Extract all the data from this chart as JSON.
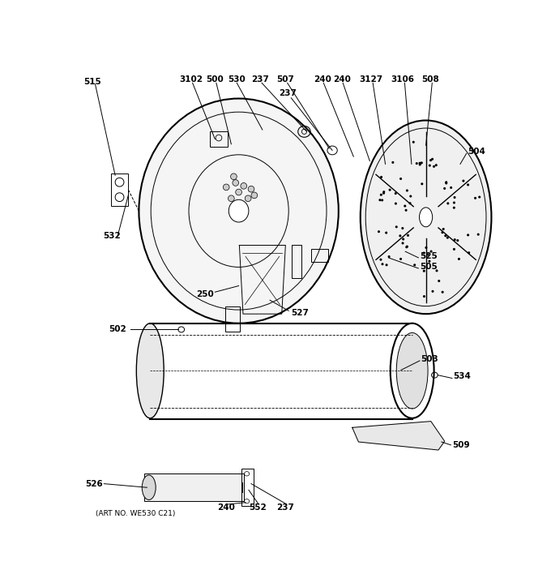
{
  "bg_color": "#ffffff",
  "art_no": "(ART NO. WE530 C21)",
  "line_color": "#000000",
  "fs": 7.5
}
